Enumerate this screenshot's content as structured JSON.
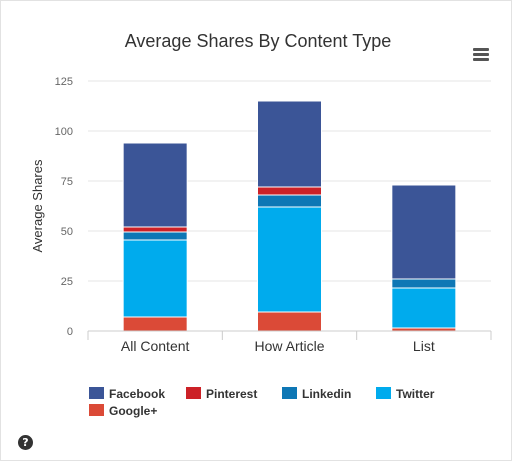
{
  "colors": {
    "facebook": "#3b5597",
    "pinterest": "#cc2127",
    "linkedin": "#0e77b5",
    "twitter": "#00abed",
    "googleplus": "#db4a37",
    "axis_text": "#666666",
    "grid": "#e6e6e6",
    "title": "#333333"
  },
  "icons": {
    "menu": "hamburger-menu-icon",
    "help": "question-circle-icon"
  },
  "help_glyph": "?",
  "chart_data": {
    "type": "bar",
    "stacked": true,
    "title": "Average Shares By Content Type",
    "xlabel": "",
    "ylabel": "Average Shares",
    "ylim": [
      0,
      125
    ],
    "yticks": [
      0,
      25,
      50,
      75,
      100,
      125
    ],
    "grid": true,
    "legend_position": "bottom-left",
    "categories": [
      "All Content",
      "How Article",
      "List"
    ],
    "series": [
      {
        "name": "Google+",
        "key": "googleplus",
        "values": [
          7,
          9.5,
          1.5
        ]
      },
      {
        "name": "Twitter",
        "key": "twitter",
        "values": [
          38.5,
          52.5,
          20
        ]
      },
      {
        "name": "Linkedin",
        "key": "linkedin",
        "values": [
          4,
          6,
          4.5
        ]
      },
      {
        "name": "Pinterest",
        "key": "pinterest",
        "values": [
          2.5,
          4,
          0
        ]
      },
      {
        "name": "Facebook",
        "key": "facebook",
        "values": [
          42,
          43,
          47
        ]
      }
    ],
    "legend_order": [
      "Facebook",
      "Pinterest",
      "Linkedin",
      "Twitter",
      "Google+"
    ]
  }
}
